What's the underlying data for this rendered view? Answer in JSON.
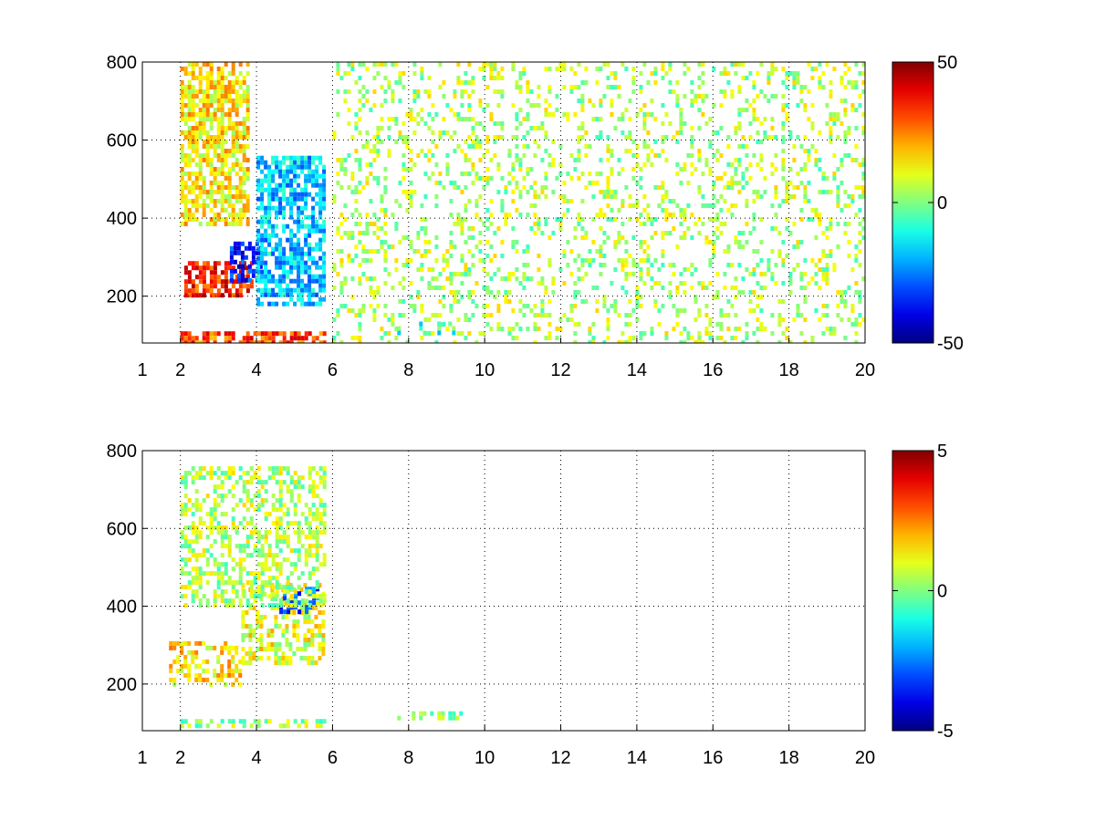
{
  "chart_data": [
    {
      "type": "heatmap",
      "title": "",
      "xlabel": "",
      "ylabel": "",
      "xlim": [
        1,
        20
      ],
      "ylim": [
        80,
        800
      ],
      "x_ticks": [
        1,
        2,
        4,
        6,
        8,
        10,
        12,
        14,
        16,
        18,
        20
      ],
      "y_ticks": [
        200,
        400,
        600,
        800
      ],
      "grid": true,
      "colormap": "jet",
      "clim": [
        -50,
        50
      ],
      "colorbar_ticks": [
        50,
        0,
        -50
      ],
      "regions": [
        {
          "x": [
            2.1,
            3.9
          ],
          "y": [
            200,
            290
          ],
          "value": 35
        },
        {
          "x": [
            3.3,
            4.1
          ],
          "y": [
            240,
            340
          ],
          "value": -35
        },
        {
          "x": [
            4.0,
            5.8
          ],
          "y": [
            180,
            560
          ],
          "value": -18
        },
        {
          "x": [
            2.0,
            3.8
          ],
          "y": [
            380,
            800
          ],
          "value": 14
        },
        {
          "x": [
            2.0,
            5.8
          ],
          "y": [
            85,
            110
          ],
          "value": 30
        },
        {
          "x": [
            7.7,
            9.3
          ],
          "y": [
            110,
            135
          ],
          "value": -8
        },
        {
          "x": [
            6.0,
            20.0
          ],
          "y": [
            80,
            800
          ],
          "value": 5
        }
      ]
    },
    {
      "type": "heatmap",
      "title": "",
      "xlabel": "",
      "ylabel": "",
      "xlim": [
        1,
        20
      ],
      "ylim": [
        80,
        800
      ],
      "x_ticks": [
        1,
        2,
        4,
        6,
        8,
        10,
        12,
        14,
        16,
        18,
        20
      ],
      "y_ticks": [
        200,
        400,
        600,
        800
      ],
      "grid": true,
      "colormap": "jet",
      "clim": [
        -5,
        5
      ],
      "colorbar_ticks": [
        5,
        0,
        -5
      ],
      "regions": [
        {
          "x": [
            1.7,
            3.6
          ],
          "y": [
            200,
            310
          ],
          "value": 1.5
        },
        {
          "x": [
            3.6,
            5.8
          ],
          "y": [
            260,
            460
          ],
          "value": 1.0
        },
        {
          "x": [
            4.6,
            5.6
          ],
          "y": [
            380,
            450
          ],
          "value": -3
        },
        {
          "x": [
            2.0,
            5.8
          ],
          "y": [
            90,
            110
          ],
          "value": 0.3
        },
        {
          "x": [
            7.7,
            9.4
          ],
          "y": [
            115,
            130
          ],
          "value": 0.2
        },
        {
          "x": [
            2.0,
            5.8
          ],
          "y": [
            400,
            760
          ],
          "value": 0.5
        }
      ]
    }
  ]
}
